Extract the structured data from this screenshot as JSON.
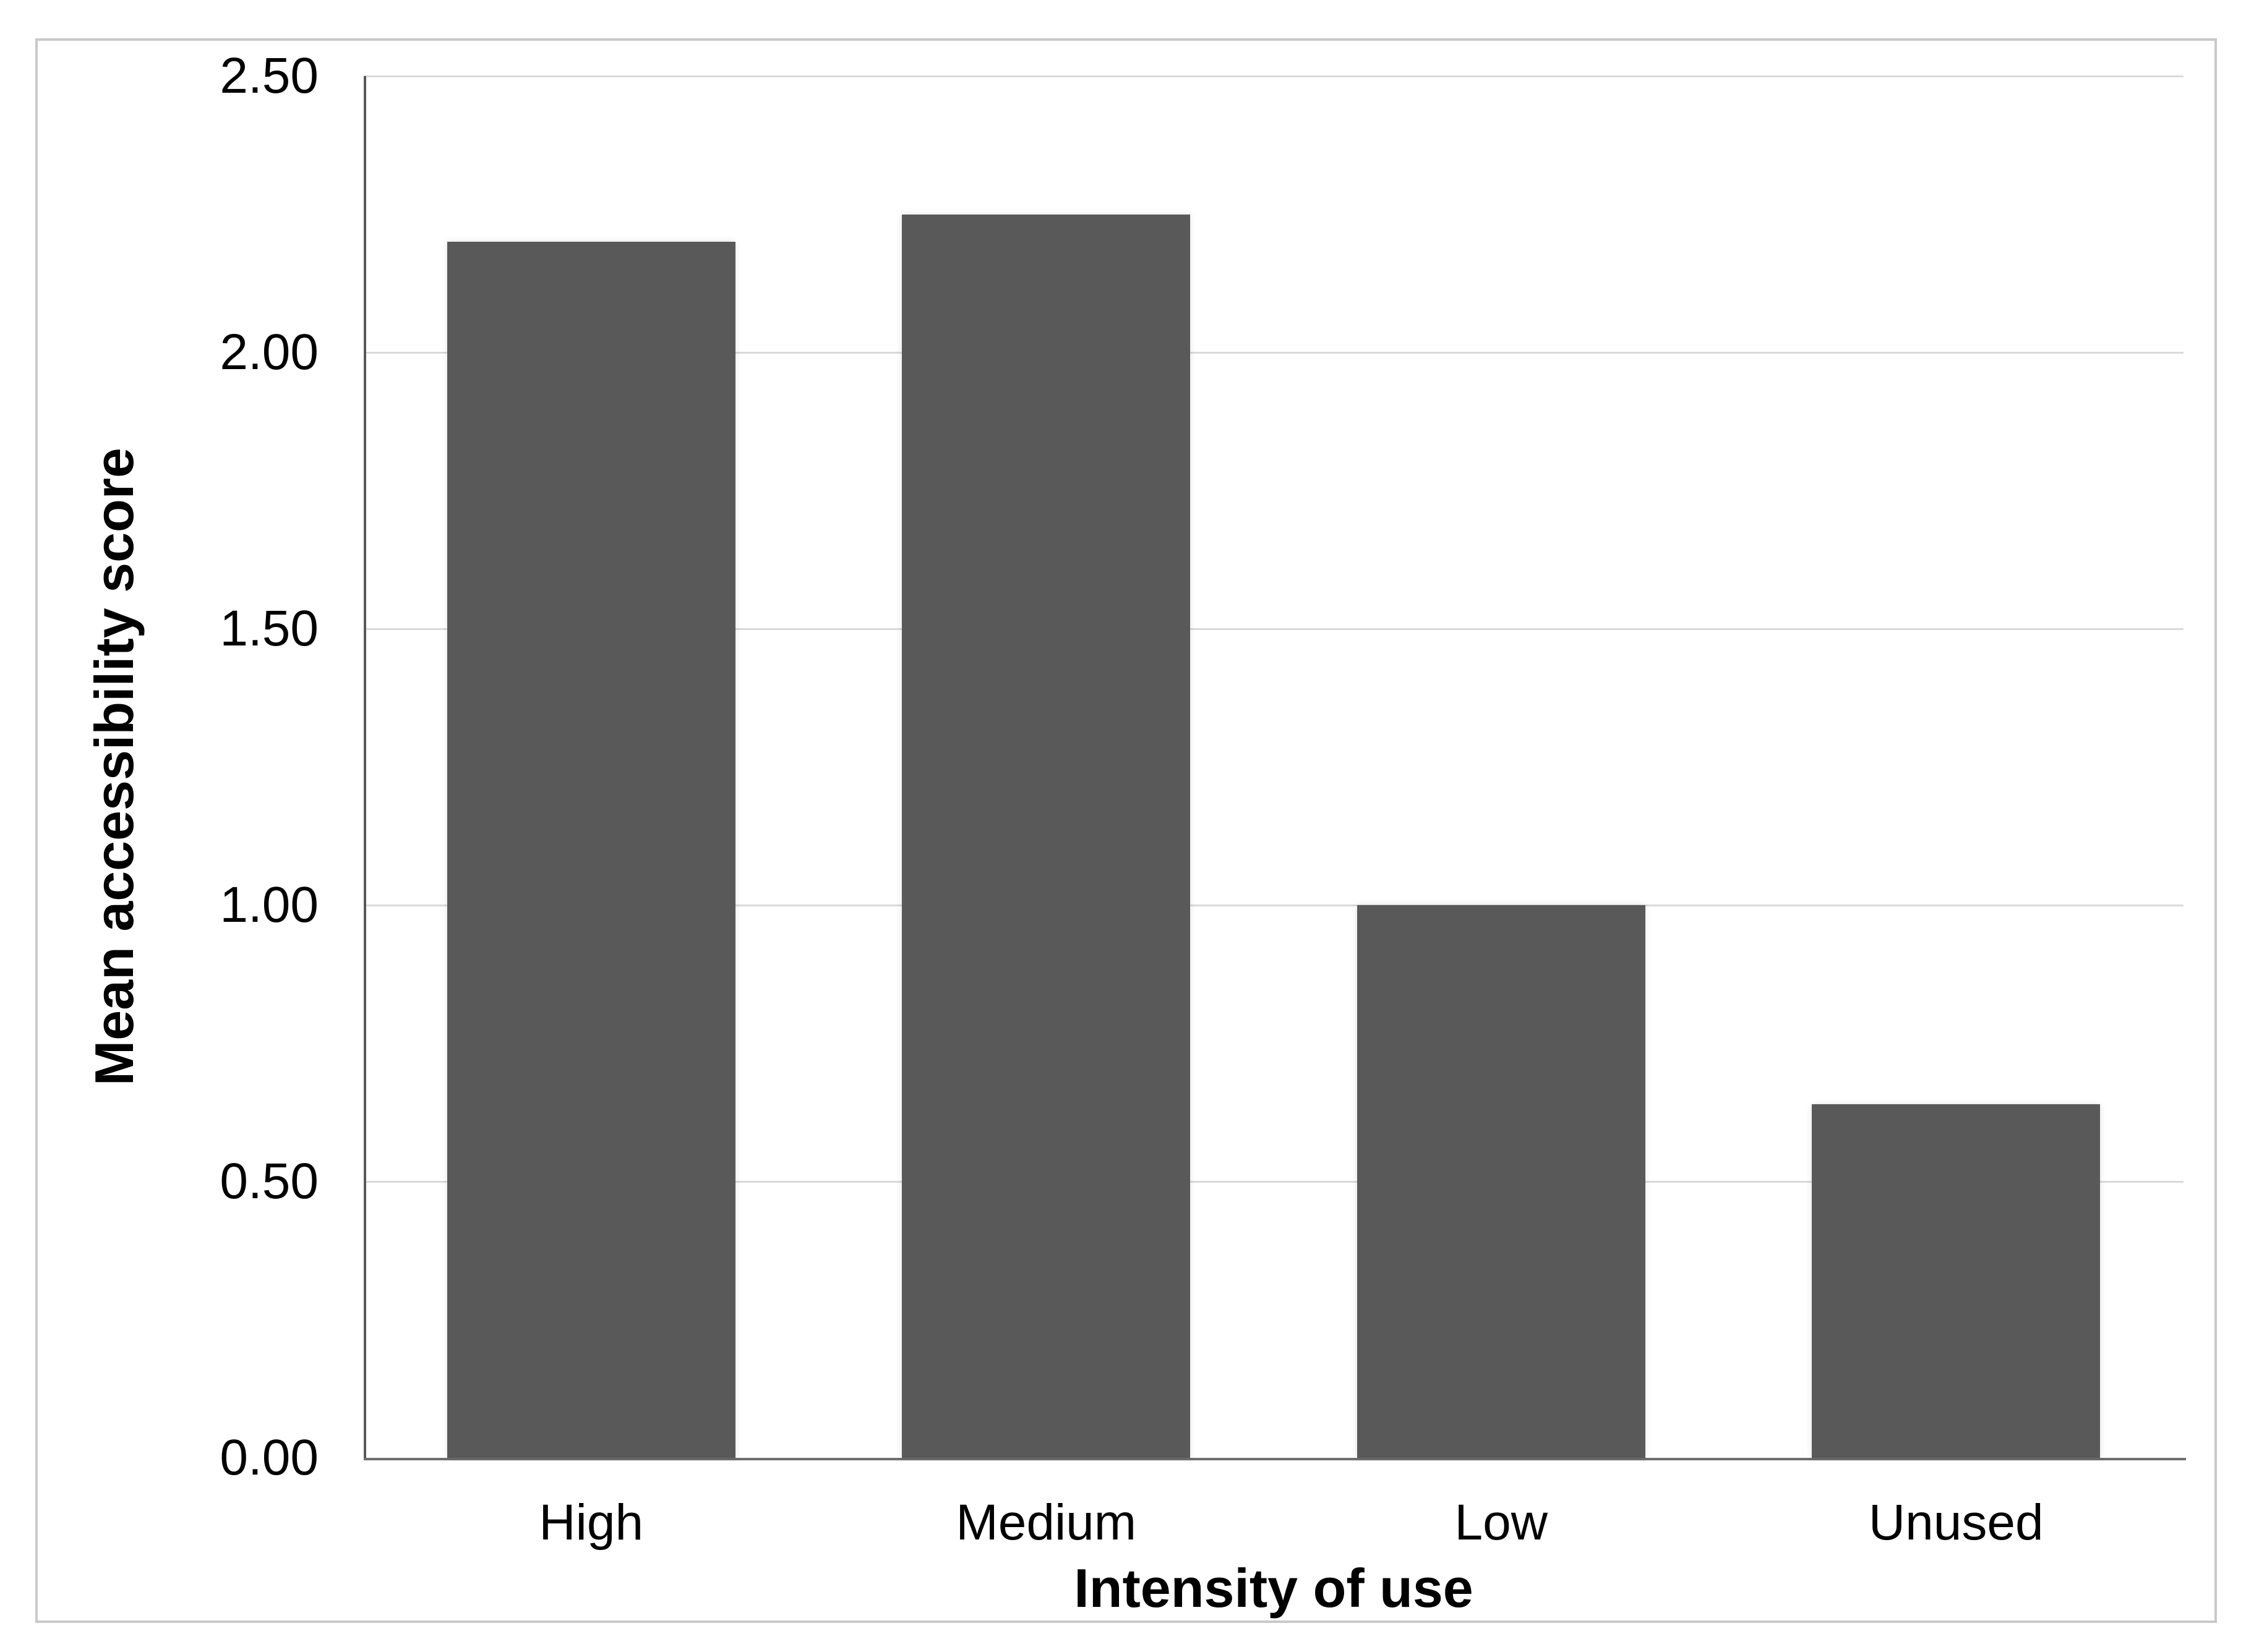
{
  "chart_data": {
    "type": "bar",
    "categories": [
      "High",
      "Medium",
      "Low",
      "Unused"
    ],
    "values": [
      2.2,
      2.25,
      1.0,
      0.64
    ],
    "title": "",
    "xlabel": "Intensity of use",
    "ylabel": "Mean accessibility score",
    "ylim": [
      0,
      2.5
    ],
    "ytick_step": 0.5,
    "ytick_labels": [
      "0.00",
      "0.50",
      "1.00",
      "1.50",
      "2.00",
      "2.50"
    ],
    "grid": "horizontal",
    "legend_position": "none",
    "bar_color": "#595959",
    "gridline_color": "#dadada",
    "axis_line_color": "#595959",
    "text_color": "#000000",
    "frame_border_color": "#c9c9c9",
    "background_color": "#ffffff"
  }
}
